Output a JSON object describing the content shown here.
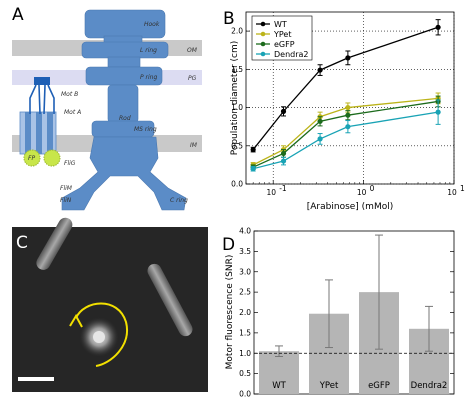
{
  "panels": {
    "a": "A",
    "b": "B",
    "c": "C",
    "d": "D"
  },
  "diagram": {
    "labels": {
      "hook": "Hook",
      "l_ring": "L ring",
      "p_ring": "P ring",
      "rod": "Rod",
      "ms_ring": "MS ring",
      "c_ring": "C ring",
      "mot_b": "Mot B",
      "mot_a": "Mot A",
      "fp": "FP",
      "flig": "FliG",
      "flim": "FliM",
      "flin": "FliN",
      "om": "OM",
      "pg": "PG",
      "im": "IM"
    },
    "colors": {
      "motor": "#5b8cc7",
      "membrane": "#c9c9c9",
      "pg_band": "#dcdcf2",
      "fp": "#c8e64a",
      "mot_b": "#1e5fb5"
    }
  },
  "chart_data": [
    {
      "type": "line",
      "xlabel": "[Arabinose] (mMol)",
      "ylabel": "Population diameter (cm)",
      "xscale": "log",
      "xlim": [
        0.05,
        10
      ],
      "ylim": [
        0,
        2.25
      ],
      "xticks": [
        {
          "v": 0.1,
          "label": "10"
        },
        {
          "v": 1,
          "label": "10"
        },
        {
          "v": 10,
          "label": "10"
        }
      ],
      "xtick_exps": [
        "-1",
        "0",
        "1"
      ],
      "yticks": [
        0,
        0.5,
        1.0,
        1.5,
        2.0
      ],
      "ytick_labels": [
        "0.0",
        "0.5",
        "1.0",
        "1.5",
        "2.0"
      ],
      "grid": true,
      "legend": "top-left",
      "x": [
        0.06,
        0.13,
        0.33,
        0.67,
        6.67
      ],
      "series": [
        {
          "name": "WT",
          "color": "#000000",
          "values": [
            0.45,
            0.95,
            1.49,
            1.65,
            2.05
          ],
          "err": [
            0.03,
            0.06,
            0.07,
            0.09,
            0.1
          ]
        },
        {
          "name": "YPet",
          "color": "#bcb41a",
          "values": [
            0.25,
            0.45,
            0.88,
            1.0,
            1.12
          ],
          "err": [
            0.03,
            0.05,
            0.06,
            0.06,
            0.07
          ]
        },
        {
          "name": "eGFP",
          "color": "#1c6b1c",
          "values": [
            0.22,
            0.4,
            0.82,
            0.9,
            1.08
          ],
          "err": [
            0.03,
            0.05,
            0.06,
            0.06,
            0.07
          ]
        },
        {
          "name": "Dendra2",
          "color": "#19a3b5",
          "values": [
            0.2,
            0.3,
            0.59,
            0.75,
            0.94
          ],
          "err": [
            0.03,
            0.05,
            0.07,
            0.08,
            0.16
          ]
        }
      ]
    },
    {
      "type": "bar",
      "ylabel": "Motor fluorescence (SNR)",
      "ylim": [
        0,
        4.0
      ],
      "yticks": [
        0,
        0.5,
        1.0,
        1.5,
        2.0,
        2.5,
        3.0,
        3.5,
        4.0
      ],
      "ytick_labels": [
        "0.0",
        "0.5",
        "1.0",
        "1.5",
        "2.0",
        "2.5",
        "3.0",
        "3.5",
        "4.0"
      ],
      "categories": [
        "WT",
        "YPet",
        "eGFP",
        "Dendra2"
      ],
      "values": [
        1.05,
        1.97,
        2.5,
        1.6
      ],
      "err": [
        0.13,
        0.83,
        1.4,
        0.55
      ],
      "reference_line": 1.0,
      "bar_color": "#b5b5b5"
    }
  ]
}
